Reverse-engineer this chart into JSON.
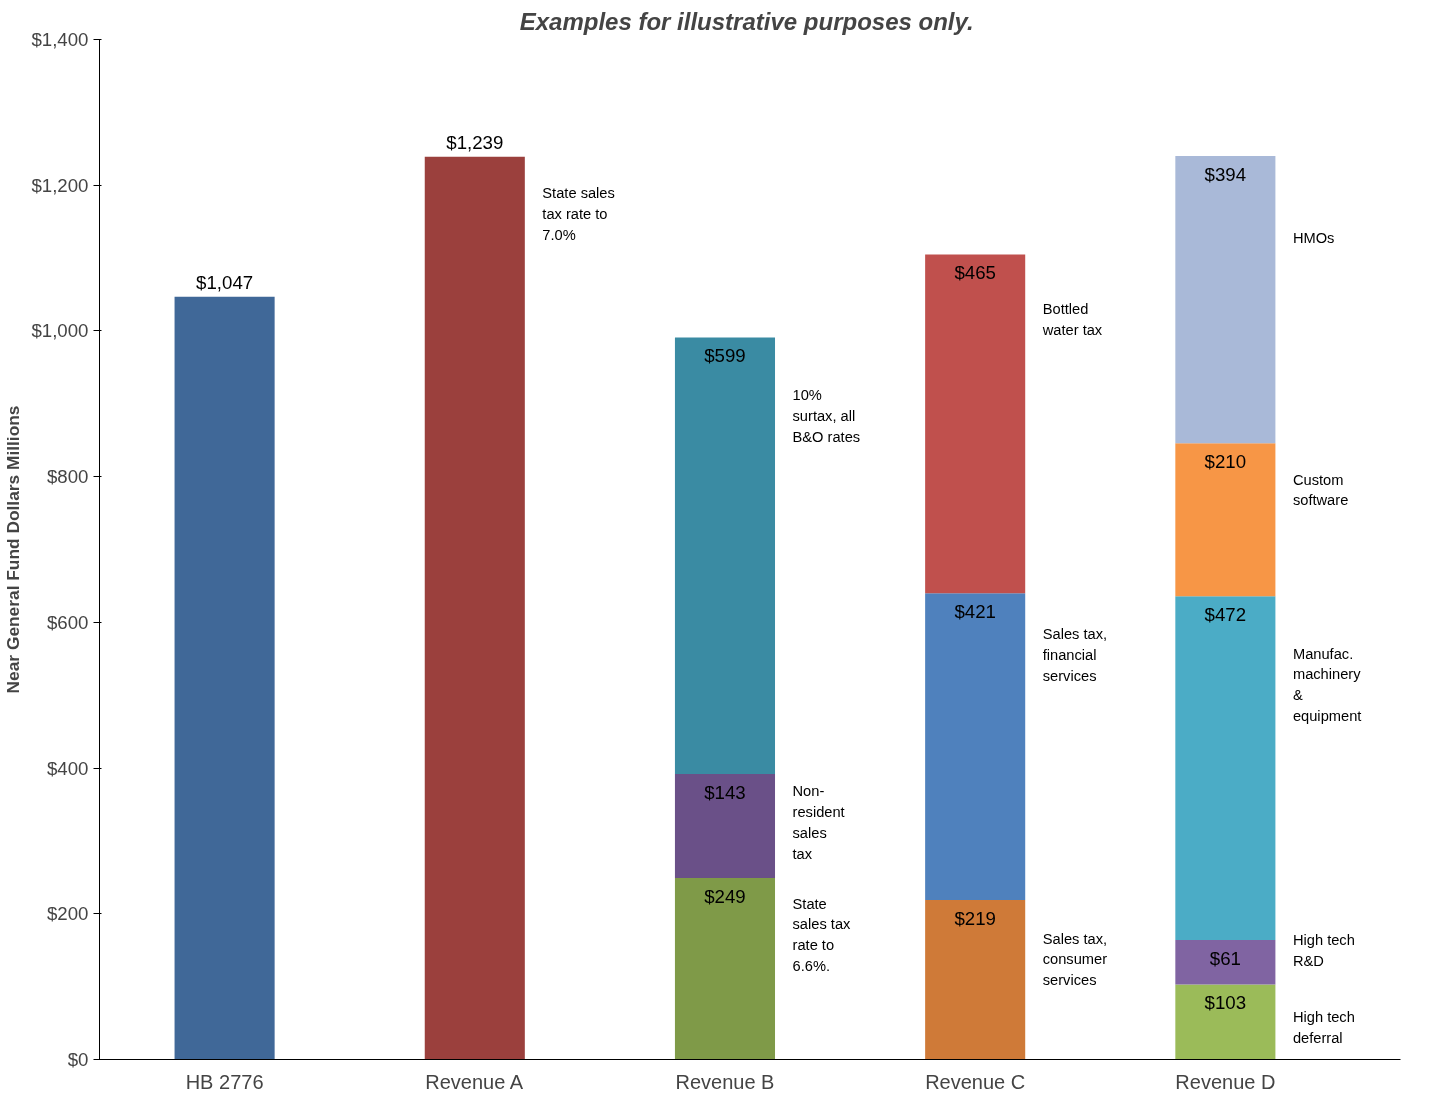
{
  "chart_data": {
    "type": "bar",
    "stacked": true,
    "title": "Examples for illustrative  purposes only.",
    "ylabel": "Near General Fund Dollars Millions",
    "categories": [
      "HB 2776",
      "Revenue A",
      "Revenue B",
      "Revenue C",
      "Revenue D"
    ],
    "series": [
      {
        "colors": [
          "#406898",
          "#9b403d",
          "#7f9a48",
          "#cf7a38",
          "#9bbb59"
        ],
        "values": [
          1047,
          1239,
          249,
          219,
          103
        ],
        "value_labels": [
          "$1,047",
          "$1,239",
          "$249",
          "$219",
          "$103"
        ]
      },
      {
        "colors": [
          null,
          null,
          "#6a5088",
          "#4f81bd",
          "#8064a2"
        ],
        "values": [
          null,
          null,
          143,
          421,
          61
        ],
        "value_labels": [
          null,
          null,
          "$143",
          "$421",
          "$61"
        ]
      },
      {
        "colors": [
          null,
          null,
          "#3a8ba3",
          "#c0504d",
          "#4bacc6"
        ],
        "values": [
          null,
          null,
          599,
          465,
          472
        ],
        "value_labels": [
          null,
          null,
          "$599",
          "$465",
          "$472"
        ]
      },
      {
        "colors": [
          null,
          null,
          null,
          null,
          "#f79646"
        ],
        "values": [
          null,
          null,
          null,
          null,
          210
        ],
        "value_labels": [
          null,
          null,
          null,
          null,
          "$210"
        ]
      },
      {
        "colors": [
          null,
          null,
          null,
          null,
          "#a9b9d8"
        ],
        "values": [
          null,
          null,
          null,
          null,
          394
        ],
        "value_labels": [
          null,
          null,
          null,
          null,
          "$394"
        ]
      }
    ],
    "ylim": [
      0,
      1400
    ],
    "yticks": [
      {
        "value": 0,
        "label": "$0"
      },
      {
        "value": 200,
        "label": "$200"
      },
      {
        "value": 400,
        "label": "$400"
      },
      {
        "value": 600,
        "label": "$600"
      },
      {
        "value": 800,
        "label": "$800"
      },
      {
        "value": 1000,
        "label": "$1,000"
      },
      {
        "value": 1200,
        "label": "$1,200"
      },
      {
        "value": 1400,
        "label": "$1,400"
      }
    ],
    "grid": false,
    "annotations": [
      "State sales\ntax rate to\n7.0%",
      "10%\nsurtax, all\nB&O rates",
      "Non-\nresident\nsales\ntax",
      "State\nsales tax\nrate to\n6.6%.",
      "Bottled\nwater tax",
      "Sales tax,\nfinancial\nservices",
      "Sales tax,\nconsumer\nservices",
      "HMOs",
      "Custom\nsoftware",
      "Manufac.\nmachinery\n&\nequipment",
      "High tech\nR&D",
      "High tech\ndeferral"
    ]
  }
}
